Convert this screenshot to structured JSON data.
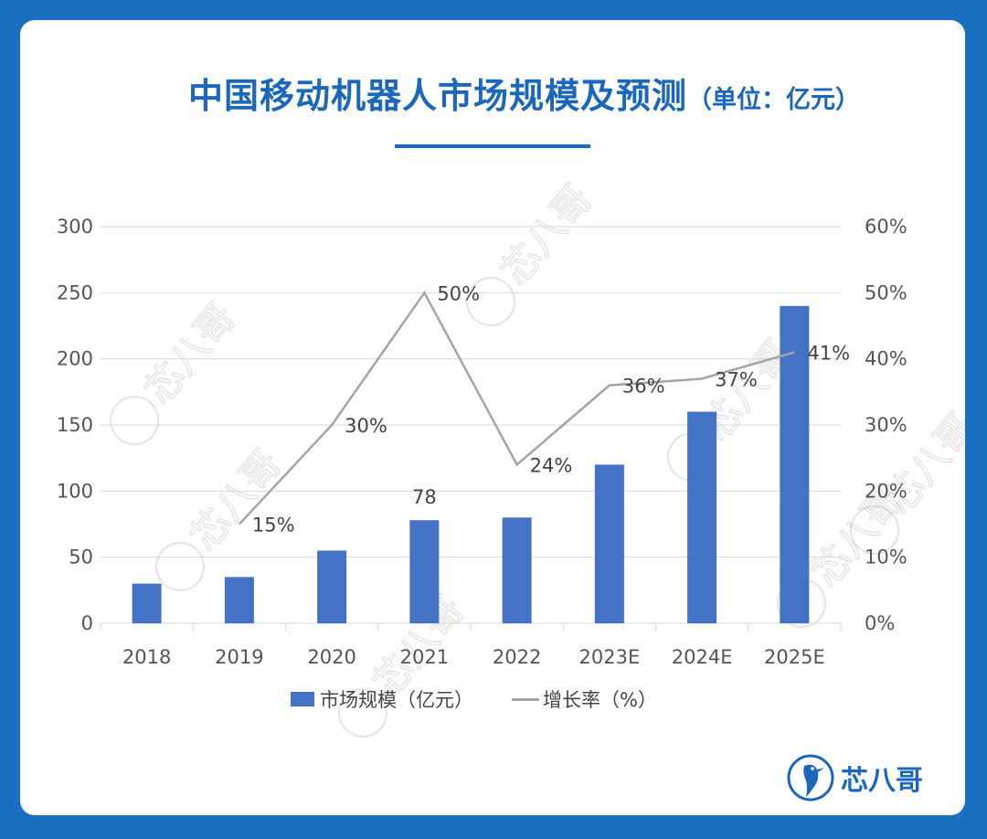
{
  "title": "中国移动机器人市场规模及预测",
  "title_unit": "（单位：亿元）",
  "brand": "芯八哥",
  "watermark": "芯八哥",
  "colors": {
    "bar": "#4472c4",
    "line": "#a5a5a5",
    "title": "#1a67bb",
    "background": "#1a6fc0"
  },
  "chart_data": {
    "type": "bar",
    "categories": [
      "2018",
      "2019",
      "2020",
      "2021",
      "2022",
      "2023E",
      "2024E",
      "2025E"
    ],
    "series": [
      {
        "name": "市场规模（亿元）",
        "type": "bar",
        "axis": "left",
        "values": [
          30,
          35,
          55,
          78,
          80,
          120,
          160,
          240
        ],
        "data_labels": [
          null,
          null,
          null,
          "78",
          null,
          null,
          null,
          null
        ]
      },
      {
        "name": "增长率（%）",
        "type": "line",
        "axis": "right",
        "values": [
          null,
          15,
          30,
          50,
          24,
          36,
          37,
          41
        ],
        "data_labels": [
          null,
          "15%",
          "30%",
          "50%",
          "24%",
          "36%",
          "37%",
          "41%"
        ]
      }
    ],
    "y_left": {
      "range": [
        0,
        300
      ],
      "ticks": [
        "0",
        "50",
        "100",
        "150",
        "200",
        "250",
        "300"
      ]
    },
    "y_right": {
      "range": [
        0,
        60
      ],
      "ticks": [
        "0%",
        "10%",
        "20%",
        "30%",
        "40%",
        "50%",
        "60%"
      ]
    },
    "grid": true,
    "legend": "bottom"
  }
}
